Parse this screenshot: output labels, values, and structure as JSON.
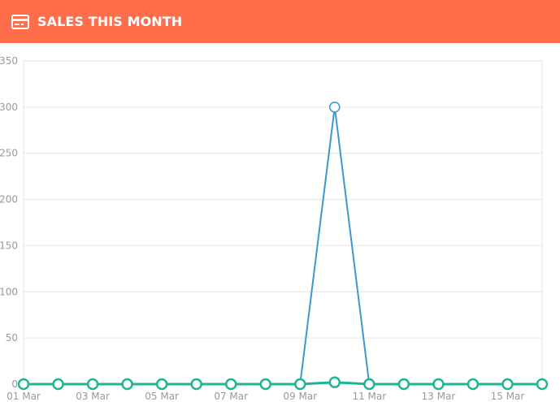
{
  "header": {
    "title": "SALES THIS MONTH",
    "icon": "credit-card-icon",
    "background": "#ff6e4a"
  },
  "chart_data": {
    "type": "line",
    "title": "",
    "xlabel": "",
    "ylabel": "",
    "ylim": [
      0,
      350
    ],
    "y_ticks": [
      0,
      50,
      100,
      150,
      200,
      250,
      300,
      350
    ],
    "x": [
      "01 Mar",
      "02 Mar",
      "03 Mar",
      "04 Mar",
      "05 Mar",
      "06 Mar",
      "07 Mar",
      "08 Mar",
      "09 Mar",
      "10 Mar",
      "11 Mar",
      "12 Mar",
      "13 Mar",
      "14 Mar",
      "15 Mar",
      "16 Mar"
    ],
    "x_tick_labels": [
      "01 Mar",
      "03 Mar",
      "05 Mar",
      "07 Mar",
      "09 Mar",
      "11 Mar",
      "13 Mar",
      "15 Mar"
    ],
    "grid": true,
    "series": [
      {
        "color": "#3a97d4",
        "values": [
          0,
          0,
          0,
          0,
          0,
          0,
          0,
          0,
          0,
          300,
          0,
          0,
          0,
          0,
          0,
          0
        ],
        "marker_at": [
          9
        ]
      },
      {
        "color": "#1fb592",
        "values": [
          0,
          0,
          0,
          0,
          0,
          0,
          0,
          0,
          0,
          2,
          0,
          0,
          0,
          0,
          0,
          0
        ]
      }
    ]
  }
}
